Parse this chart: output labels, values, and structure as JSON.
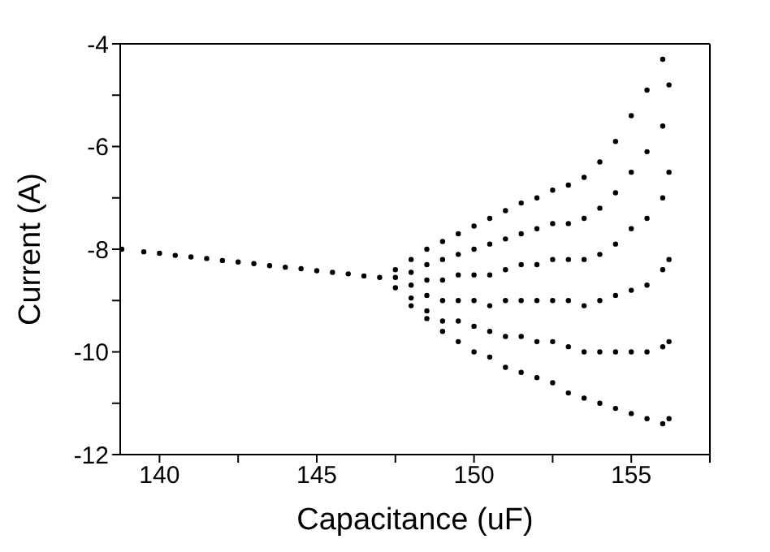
{
  "chart_data": {
    "type": "scatter",
    "xlabel": "Capacitance (uF)",
    "ylabel": "Current (A)",
    "xlim": [
      138.75,
      157.5
    ],
    "ylim": [
      -12,
      -4
    ],
    "xticks": [
      140,
      {
        "value": 142.5,
        "label": null
      },
      145,
      {
        "value": 147.5,
        "label": null
      },
      150,
      {
        "value": 152.5,
        "label": null
      },
      155,
      {
        "value": 157.5,
        "label": null
      }
    ],
    "yticks": [
      -12,
      {
        "value": -11,
        "label": null
      },
      -10,
      {
        "value": -9,
        "label": null
      },
      -8,
      {
        "value": -7,
        "label": null
      },
      -6,
      {
        "value": -5,
        "label": null
      },
      -4
    ],
    "marker": "circle",
    "series": [
      {
        "color": "#000000",
        "x": [
          138.8,
          139.5,
          140,
          140.5,
          141,
          141.5,
          142,
          142.5,
          143,
          143.5,
          144,
          144.5,
          145,
          145.5,
          146,
          146.5,
          147,
          147.5,
          147.5,
          147.5,
          148,
          148,
          148,
          148,
          148,
          148.5,
          148.5,
          148.5,
          148.5,
          148.5,
          148.5,
          149,
          149,
          149,
          149,
          149,
          149,
          149.5,
          149.5,
          149.5,
          149.5,
          149.5,
          149.5,
          150,
          150,
          150,
          150,
          150,
          150,
          150.5,
          150.5,
          150.5,
          150.5,
          150.5,
          150.5,
          151,
          151,
          151,
          151,
          151,
          151,
          151.5,
          151.5,
          151.5,
          151.5,
          151.5,
          151.5,
          152,
          152,
          152,
          152,
          152,
          152,
          152.5,
          152.5,
          152.5,
          152.5,
          152.5,
          152.5,
          153,
          153,
          153,
          153,
          153,
          153,
          153.5,
          153.5,
          153.5,
          153.5,
          153.5,
          153.5,
          154,
          154,
          154,
          154,
          154,
          154,
          154.5,
          154.5,
          154.5,
          154.5,
          154.5,
          154.5,
          155,
          155,
          155,
          155,
          155,
          155,
          155.5,
          155.5,
          155.5,
          155.5,
          155.5,
          155.5,
          156,
          156,
          156,
          156,
          156,
          156,
          156.2,
          156.2,
          156.2,
          156.2,
          156.2
        ],
        "values": [
          -8.0,
          -8.05,
          -8.08,
          -8.12,
          -8.15,
          -8.18,
          -8.22,
          -8.25,
          -8.28,
          -8.32,
          -8.35,
          -8.38,
          -8.42,
          -8.45,
          -8.48,
          -8.52,
          -8.55,
          -8.4,
          -8.55,
          -8.75,
          -8.2,
          -8.45,
          -8.7,
          -8.95,
          -9.1,
          -8.0,
          -8.3,
          -8.6,
          -8.9,
          -9.2,
          -9.35,
          -7.85,
          -8.2,
          -8.6,
          -9.0,
          -9.4,
          -9.6,
          -7.7,
          -8.1,
          -8.5,
          -9.0,
          -9.4,
          -9.8,
          -7.55,
          -8.0,
          -8.5,
          -9.0,
          -9.5,
          -10.0,
          -7.4,
          -7.9,
          -8.5,
          -9.1,
          -9.6,
          -10.1,
          -7.25,
          -7.8,
          -8.4,
          -9.0,
          -9.7,
          -10.3,
          -7.1,
          -7.7,
          -8.3,
          -9.0,
          -9.7,
          -10.4,
          -7.0,
          -7.6,
          -8.3,
          -9.0,
          -9.8,
          -10.5,
          -6.85,
          -7.5,
          -8.2,
          -9.0,
          -9.8,
          -10.6,
          -6.75,
          -7.5,
          -8.2,
          -9.0,
          -9.9,
          -10.8,
          -6.6,
          -7.4,
          -8.2,
          -9.1,
          -10.0,
          -10.9,
          -6.3,
          -7.2,
          -8.1,
          -9.0,
          -10.0,
          -11.0,
          -5.9,
          -6.9,
          -7.9,
          -8.9,
          -10.0,
          -11.1,
          -5.4,
          -6.5,
          -7.6,
          -8.8,
          -10.0,
          -11.2,
          -4.9,
          -6.1,
          -7.4,
          -8.7,
          -10.0,
          -11.3,
          -4.3,
          -5.6,
          -7.0,
          -8.4,
          -9.9,
          -11.4,
          -4.8,
          -6.5,
          -8.2,
          -9.8,
          -11.3
        ]
      }
    ]
  }
}
